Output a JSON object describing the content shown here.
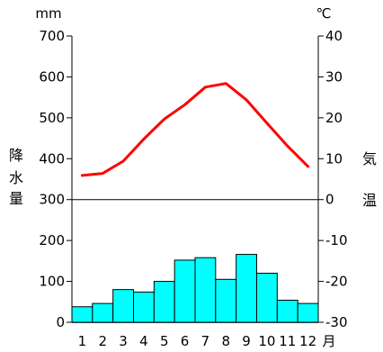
{
  "chart_data": {
    "type": "bar+line",
    "title": "",
    "categories": [
      "1",
      "2",
      "3",
      "4",
      "5",
      "6",
      "7",
      "8",
      "9",
      "10",
      "11",
      "12"
    ],
    "x_axis_unit": "月",
    "precipitation": {
      "name": "降水量",
      "unit": "mm",
      "values": [
        38,
        46,
        80,
        74,
        100,
        152,
        158,
        105,
        166,
        120,
        54,
        46
      ],
      "ylim": [
        0,
        700
      ],
      "ticks": [
        0,
        100,
        200,
        300,
        400,
        500,
        600,
        700
      ],
      "label_chars": [
        "降",
        "水",
        "量"
      ],
      "color": "#00ffff",
      "edge_color": "#000000"
    },
    "temperature": {
      "name": "気温",
      "unit": "℃",
      "values": [
        5.9,
        6.4,
        9.4,
        14.8,
        19.7,
        23.2,
        27.5,
        28.4,
        24.4,
        18.7,
        13.1,
        8.1
      ],
      "ylim": [
        -30,
        40
      ],
      "ticks": [
        -30,
        -20,
        -10,
        0,
        10,
        20,
        30,
        40
      ],
      "tick_labels": [
        "-30",
        "-20",
        "-10",
        "0",
        "10",
        "20",
        "30",
        "40"
      ],
      "label_chars": [
        "気",
        "温"
      ],
      "color": "#ff0000"
    },
    "divider_at_precipitation": 300,
    "grid": false,
    "legend": "none"
  }
}
